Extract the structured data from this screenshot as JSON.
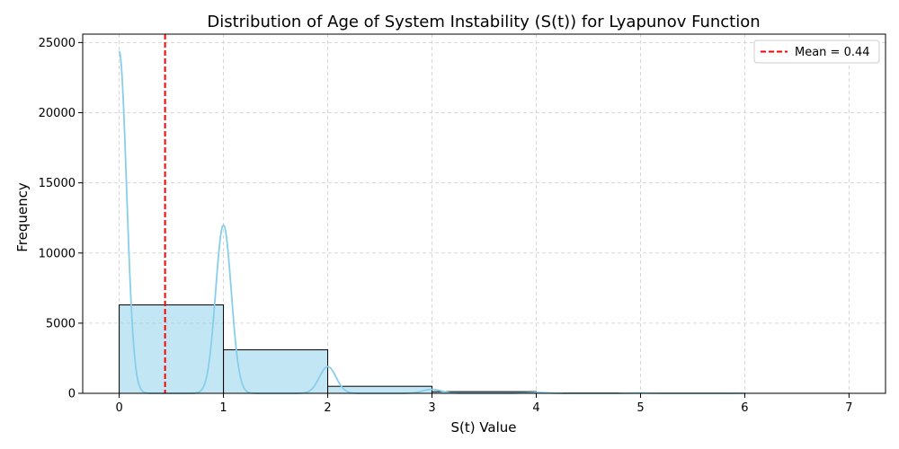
{
  "chart_data": {
    "type": "bar",
    "title": "Distribution of Age of System Instability (S(t)) for Lyapunov Function",
    "xlabel": "S(t) Value",
    "ylabel": "Frequency",
    "xlim": [
      -0.35,
      7.35
    ],
    "ylim": [
      0,
      25600
    ],
    "x_ticks": [
      0,
      1,
      2,
      3,
      4,
      5,
      6,
      7
    ],
    "y_ticks": [
      0,
      5000,
      10000,
      15000,
      20000,
      25000
    ],
    "grid": true,
    "bins": [
      {
        "x0": 0,
        "x1": 1,
        "value": 6300
      },
      {
        "x0": 1,
        "x1": 2,
        "value": 3100
      },
      {
        "x0": 2,
        "x1": 3,
        "value": 500
      },
      {
        "x0": 3,
        "x1": 4,
        "value": 120
      },
      {
        "x0": 4,
        "x1": 5,
        "value": 30
      },
      {
        "x0": 5,
        "x1": 6,
        "value": 10
      },
      {
        "x0": 6,
        "x1": 7,
        "value": 3
      }
    ],
    "kde_peaks": [
      {
        "x": 0,
        "y": 24400,
        "sigma": 0.07
      },
      {
        "x": 1,
        "y": 12000,
        "sigma": 0.075
      },
      {
        "x": 2,
        "y": 1900,
        "sigma": 0.08
      },
      {
        "x": 3,
        "y": 280,
        "sigma": 0.09
      },
      {
        "x": 4,
        "y": 60,
        "sigma": 0.1
      },
      {
        "x": 5,
        "y": 20,
        "sigma": 0.1
      },
      {
        "x": 6,
        "y": 8,
        "sigma": 0.1
      }
    ],
    "kde_x_range": [
      0,
      6
    ],
    "mean_line": {
      "x": 0.44
    },
    "legend": {
      "entries": [
        {
          "label": "Mean = 0.44",
          "color": "#ff0000",
          "style": "dashed"
        }
      ],
      "placement": "top-right"
    },
    "colors": {
      "bar_fill": "#87ceeb",
      "bar_edge": "#000000",
      "kde": "#87ceeb",
      "mean": "#ff0000",
      "grid": "#cccccc"
    }
  }
}
